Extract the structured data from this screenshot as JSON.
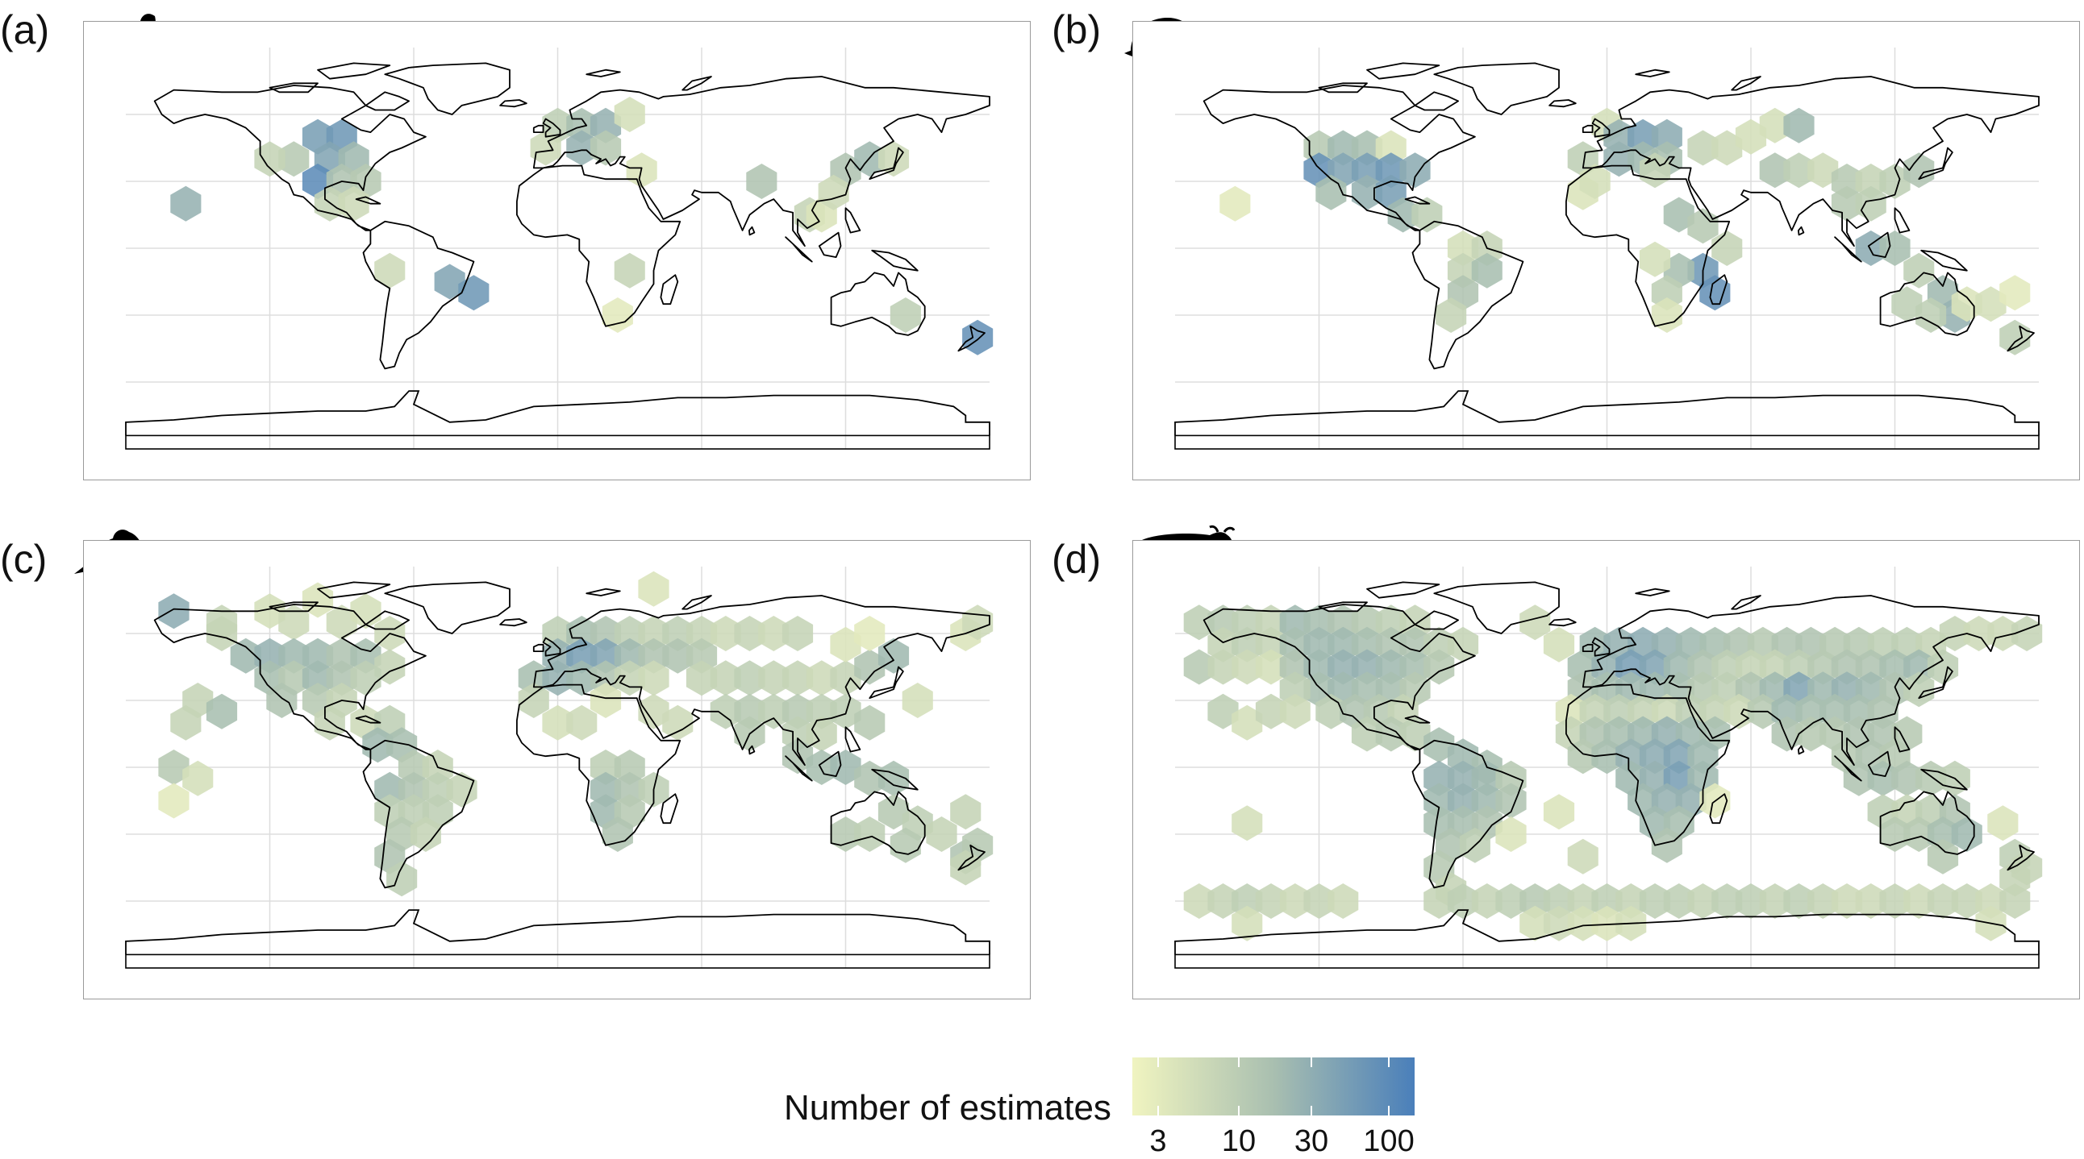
{
  "figure": {
    "panels": [
      {
        "id": "a",
        "label": "(a)",
        "taxon_icon": "salamander-silhouette-icon"
      },
      {
        "id": "b",
        "label": "(b)",
        "taxon_icon": "turtle-silhouette-icon"
      },
      {
        "id": "c",
        "label": "(c)",
        "taxon_icon": "bird-silhouette-icon"
      },
      {
        "id": "d",
        "label": "(d)",
        "taxon_icon": "wildebeest-silhouette-icon"
      }
    ],
    "legend": {
      "title": "Number of estimates",
      "ticks": [
        "3",
        "10",
        "30",
        "100"
      ],
      "color_low": "#f0f4c0",
      "color_mid": "#a9bfb0",
      "color_high": "#4a7fba",
      "scale": "log"
    },
    "colors": {
      "coastline": "#000000",
      "graticule": "#dddddd",
      "frame": "#9a9a9a"
    }
  }
}
